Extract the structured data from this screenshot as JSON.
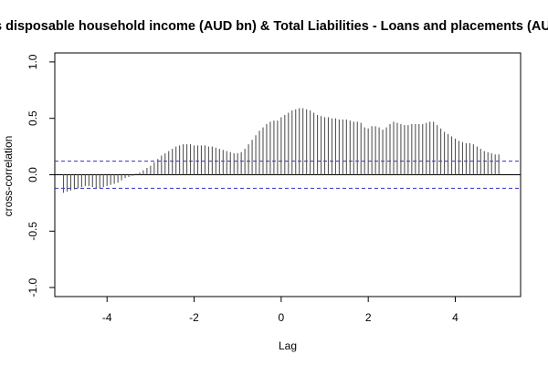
{
  "chart_data": {
    "type": "bar",
    "title": "Gross disposable household income (AUD bn) & Total Liabilities - Loans and placements (AUD bn)",
    "xlabel": "Lag",
    "ylabel": "cross-correlation",
    "xlim": [
      -5.2,
      5.5
    ],
    "ylim": [
      -1.08,
      1.08
    ],
    "x_ticks": [
      -4,
      -2,
      0,
      2,
      4
    ],
    "x_tick_labels": [
      "-4",
      "-2",
      "0",
      "2",
      "4"
    ],
    "y_ticks": [
      -1.0,
      -0.5,
      0.0,
      0.5,
      1.0
    ],
    "y_tick_labels": [
      "-1.0",
      "-0.5",
      "0.0",
      "0.5",
      "1.0"
    ],
    "confidence_limits": [
      0.12,
      -0.12
    ],
    "confidence_color": "#3333cc",
    "bar_color": "#555555",
    "grid": false,
    "lag_start": -5,
    "lag_step": 0.0833333,
    "values": [
      -0.16,
      -0.15,
      -0.14,
      -0.13,
      -0.12,
      -0.11,
      -0.1,
      -0.1,
      -0.11,
      -0.12,
      -0.12,
      -0.11,
      -0.1,
      -0.09,
      -0.08,
      -0.07,
      -0.05,
      -0.03,
      -0.02,
      -0.01,
      0.01,
      0.02,
      0.04,
      0.06,
      0.08,
      0.11,
      0.14,
      0.17,
      0.19,
      0.21,
      0.23,
      0.25,
      0.26,
      0.27,
      0.27,
      0.27,
      0.26,
      0.26,
      0.26,
      0.26,
      0.25,
      0.25,
      0.24,
      0.23,
      0.22,
      0.21,
      0.2,
      0.19,
      0.19,
      0.2,
      0.23,
      0.27,
      0.31,
      0.35,
      0.39,
      0.42,
      0.45,
      0.47,
      0.48,
      0.48,
      0.51,
      0.53,
      0.55,
      0.57,
      0.58,
      0.59,
      0.59,
      0.58,
      0.57,
      0.55,
      0.53,
      0.52,
      0.51,
      0.51,
      0.5,
      0.5,
      0.49,
      0.49,
      0.49,
      0.48,
      0.47,
      0.47,
      0.46,
      0.42,
      0.41,
      0.43,
      0.43,
      0.42,
      0.4,
      0.42,
      0.45,
      0.47,
      0.46,
      0.45,
      0.44,
      0.44,
      0.45,
      0.45,
      0.45,
      0.45,
      0.46,
      0.47,
      0.47,
      0.44,
      0.41,
      0.38,
      0.36,
      0.34,
      0.32,
      0.3,
      0.29,
      0.28,
      0.28,
      0.27,
      0.25,
      0.23,
      0.21,
      0.2,
      0.19,
      0.18,
      0.18
    ]
  }
}
